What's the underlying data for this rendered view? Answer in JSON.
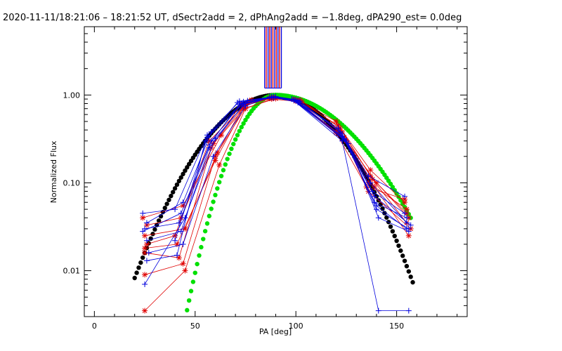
{
  "chart_data": {
    "type": "scatter",
    "title": "2020-11-11/18:21:06 – 18:21:52 UT, dSectr2add = 2, dPhAng2add = −1.8deg, dPA290_est=  0.0deg",
    "xlabel": "PA [deg]",
    "ylabel": "Normalized Flux",
    "xlim": [
      -5,
      185
    ],
    "ylim": [
      0.003,
      6.0
    ],
    "yscale": "log",
    "x_ticks": [
      0,
      50,
      100,
      150
    ],
    "x_tick_labels": [
      "0",
      "50",
      "100",
      "150"
    ],
    "y_ticks": [
      0.01,
      0.1,
      1.0
    ],
    "y_tick_labels": [
      "0.01",
      "0.10",
      "1.00"
    ],
    "grid": false,
    "colors": {
      "red_series": "#e00000",
      "blue_series": "#0000dd",
      "model_black": "#000000",
      "model_green": "#00e000"
    },
    "vertical_markers": {
      "x": [
        84.5,
        85.3,
        86.2,
        87.0,
        87.8,
        88.6,
        89.5,
        90.3,
        91.1,
        91.9,
        92.8
      ],
      "colors": [
        "#0000dd",
        "#e00000",
        "#0000dd",
        "#e00000",
        "#0000dd",
        "#e00000",
        "#0000dd",
        "#e00000",
        "#0000dd",
        "#e00000",
        "#0000dd"
      ],
      "y_from": 1.2,
      "y_to": 6.0
    },
    "model_black": {
      "x_start": 20,
      "x_end": 158,
      "peak_x": 90,
      "peak_y": 1.0,
      "sigma_left": 22.6,
      "sigma_right": 21.7
    },
    "model_green": {
      "x_start": 39,
      "x_end": 157,
      "peak_x": 90,
      "peak_y": 1.0,
      "sigma_left": 13.1,
      "sigma_right": 26.4
    },
    "series": [
      {
        "color": "#e00000",
        "x": [
          25,
          45,
          62,
          75,
          88,
          100,
          120,
          135,
          154
        ],
        "y": [
          0.0035,
          0.01,
          0.16,
          0.7,
          0.9,
          0.85,
          0.37,
          0.09,
          0.065
        ]
      },
      {
        "color": "#e00000",
        "x": [
          25,
          44,
          60,
          74,
          88,
          101,
          121,
          136,
          155
        ],
        "y": [
          0.009,
          0.012,
          0.2,
          0.75,
          0.92,
          0.87,
          0.4,
          0.1,
          0.05
        ]
      },
      {
        "color": "#e00000",
        "x": [
          25,
          42,
          58,
          73,
          89,
          102,
          122,
          137,
          156
        ],
        "y": [
          0.016,
          0.014,
          0.25,
          0.8,
          0.93,
          0.88,
          0.42,
          0.12,
          0.04
        ]
      },
      {
        "color": "#e00000",
        "x": [
          26,
          40,
          57,
          76,
          90,
          100,
          123,
          138,
          155
        ],
        "y": [
          0.02,
          0.025,
          0.3,
          0.82,
          0.92,
          0.86,
          0.38,
          0.11,
          0.035
        ]
      },
      {
        "color": "#e00000",
        "x": [
          25,
          45,
          61,
          77,
          87,
          99,
          124,
          139,
          156
        ],
        "y": [
          0.025,
          0.03,
          0.22,
          0.85,
          0.93,
          0.9,
          0.33,
          0.09,
          0.025
        ]
      },
      {
        "color": "#e00000",
        "x": [
          26,
          43,
          59,
          75,
          89,
          101,
          121,
          137,
          154
        ],
        "y": [
          0.033,
          0.04,
          0.28,
          0.78,
          0.95,
          0.87,
          0.45,
          0.14,
          0.06
        ]
      },
      {
        "color": "#e00000",
        "x": [
          24,
          44,
          63,
          78,
          88,
          103,
          120,
          136,
          157
        ],
        "y": [
          0.04,
          0.055,
          0.35,
          0.88,
          0.94,
          0.84,
          0.5,
          0.08,
          0.03
        ]
      },
      {
        "color": "#e00000",
        "x": [
          25,
          41,
          60,
          74,
          90,
          100,
          125,
          140,
          155
        ],
        "y": [
          0.018,
          0.02,
          0.18,
          0.7,
          0.91,
          0.88,
          0.3,
          0.1,
          0.045
        ]
      },
      {
        "color": "#0000dd",
        "x": [
          24,
          40,
          56,
          72,
          88,
          98,
          125,
          140,
          156
        ],
        "y": [
          0.045,
          0.05,
          0.35,
          0.85,
          0.95,
          0.9,
          0.3,
          0.05,
          0.03
        ]
      },
      {
        "color": "#0000dd",
        "x": [
          25,
          42,
          58,
          73,
          89,
          100,
          124,
          139,
          155
        ],
        "y": [
          0.03,
          0.035,
          0.3,
          0.8,
          0.96,
          0.88,
          0.32,
          0.06,
          0.04
        ]
      },
      {
        "color": "#0000dd",
        "x": [
          26,
          43,
          57,
          74,
          88,
          101,
          123,
          138,
          154
        ],
        "y": [
          0.022,
          0.028,
          0.25,
          0.78,
          0.94,
          0.87,
          0.36,
          0.08,
          0.045
        ]
      },
      {
        "color": "#0000dd",
        "x": [
          27,
          44,
          59,
          75,
          87,
          102,
          122,
          137,
          155
        ],
        "y": [
          0.016,
          0.02,
          0.2,
          0.75,
          0.95,
          0.85,
          0.38,
          0.1,
          0.035
        ]
      },
      {
        "color": "#0000dd",
        "x": [
          26,
          41,
          55,
          71,
          90,
          99,
          126,
          141,
          156
        ],
        "y": [
          0.013,
          0.015,
          0.3,
          0.82,
          0.96,
          0.89,
          0.28,
          0.04,
          0.028
        ]
      },
      {
        "color": "#0000dd",
        "x": [
          25,
          45,
          60,
          76,
          89,
          100,
          121,
          136,
          154
        ],
        "y": [
          0.007,
          0.04,
          0.32,
          0.86,
          0.93,
          0.86,
          0.42,
          0.12,
          0.07
        ]
      },
      {
        "color": "#0000dd",
        "x": [
          26,
          44,
          58,
          74,
          88,
          101,
          123,
          139,
          157
        ],
        "y": [
          0.035,
          0.06,
          0.38,
          0.84,
          0.95,
          0.82,
          0.34,
          0.07,
          0.033
        ]
      },
      {
        "color": "#0000dd",
        "x": [
          24,
          43,
          57,
          72,
          89,
          99,
          124,
          140,
          155
        ],
        "y": [
          0.028,
          0.045,
          0.27,
          0.79,
          0.94,
          0.87,
          0.31,
          0.055,
          0.03
        ]
      },
      {
        "color": "#0000dd",
        "x": [
          40,
          56,
          74,
          89,
          98,
          123,
          141,
          156
        ],
        "y": [
          0.022,
          0.33,
          0.8,
          0.94,
          0.9,
          0.3,
          0.0035,
          0.0035
        ]
      }
    ]
  }
}
